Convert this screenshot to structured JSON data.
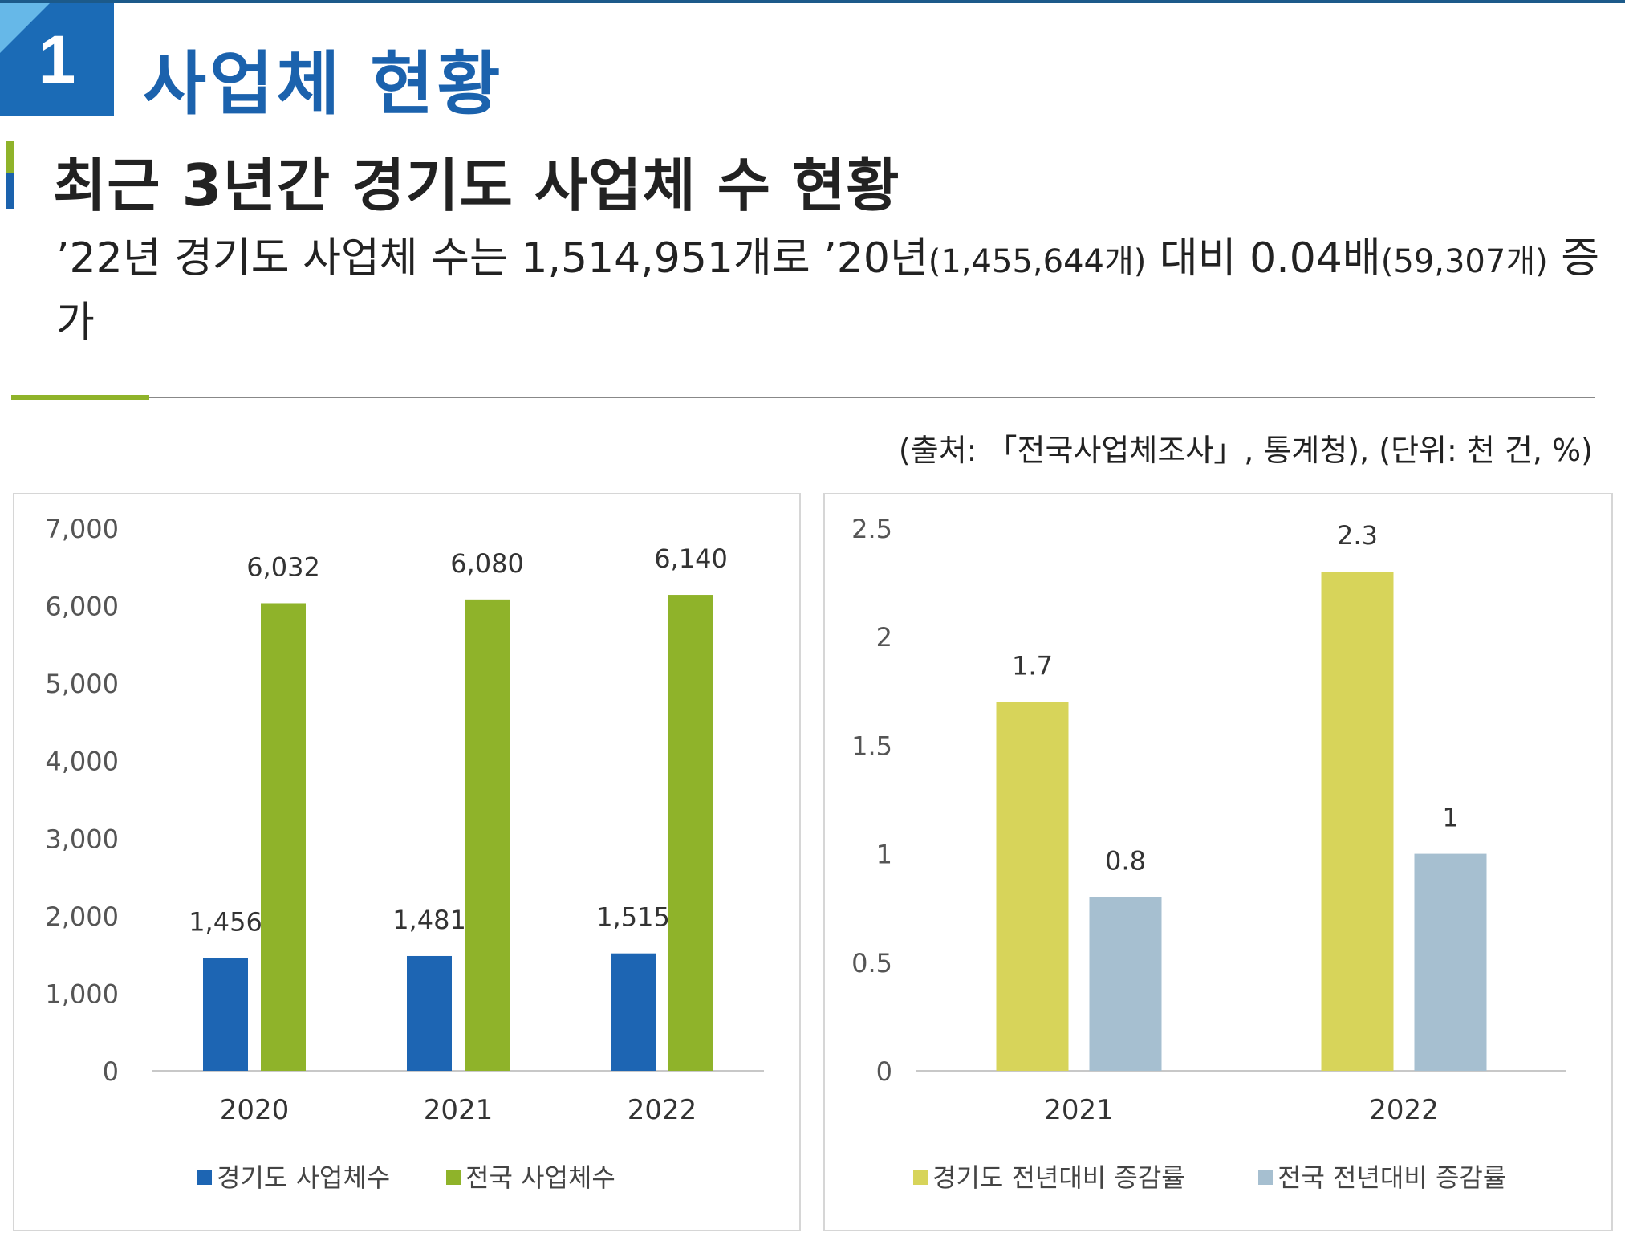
{
  "section": {
    "number": "1",
    "title": "사업체 현황"
  },
  "subtitle": "최근 3년간 경기도 사업체 수 현황",
  "description": {
    "part1": "’22년 경기도 사업체 수는 1,514,951개로 ’20년",
    "part2": "(1,455,644개)",
    "part3": " 대비 0.04배",
    "part4": "(59,307개)",
    "part5": " 증가"
  },
  "source_note": "(출처: 「전국사업체조사」, 통계청), (단위: 천 건, %)",
  "colors": {
    "accent_blue": "#1b62ad",
    "accent_green": "#8fb32a",
    "gyeonggi_count": "#1d65b3",
    "national_count": "#8fb32a",
    "gyeonggi_rate": "#d7d45a",
    "national_rate": "#a6bfd0"
  },
  "chart_data": [
    {
      "type": "bar",
      "categories": [
        "2020",
        "2021",
        "2022"
      ],
      "series": [
        {
          "name": "경기도 사업체수",
          "values": [
            1456,
            1481,
            1515
          ],
          "labels": [
            "1,456",
            "1,481",
            "1,515"
          ],
          "color": "#1d65b3"
        },
        {
          "name": "전국 사업체수",
          "values": [
            6032,
            6080,
            6140
          ],
          "labels": [
            "6,032",
            "6,080",
            "6,140"
          ],
          "color": "#8fb32a"
        }
      ],
      "ylim": [
        0,
        7000
      ],
      "yticks": [
        0,
        1000,
        2000,
        3000,
        4000,
        5000,
        6000,
        7000
      ],
      "ytick_labels": [
        "0",
        "1,000",
        "2,000",
        "3,000",
        "4,000",
        "5,000",
        "6,000",
        "7,000"
      ],
      "grid": false,
      "legend": "bottom"
    },
    {
      "type": "bar",
      "categories": [
        "2021",
        "2022"
      ],
      "series": [
        {
          "name": "경기도 전년대비 증감률",
          "values": [
            1.7,
            2.3
          ],
          "labels": [
            "1.7",
            "2.3"
          ],
          "color": "#d7d45a"
        },
        {
          "name": "전국 전년대비 증감률",
          "values": [
            0.8,
            1
          ],
          "labels": [
            "0.8",
            "1"
          ],
          "color": "#a6bfd0"
        }
      ],
      "ylim": [
        0,
        2.5
      ],
      "yticks": [
        0,
        0.5,
        1,
        1.5,
        2,
        2.5
      ],
      "ytick_labels": [
        "0",
        "0.5",
        "1",
        "1.5",
        "2",
        "2.5"
      ],
      "grid": false,
      "legend": "bottom"
    }
  ]
}
